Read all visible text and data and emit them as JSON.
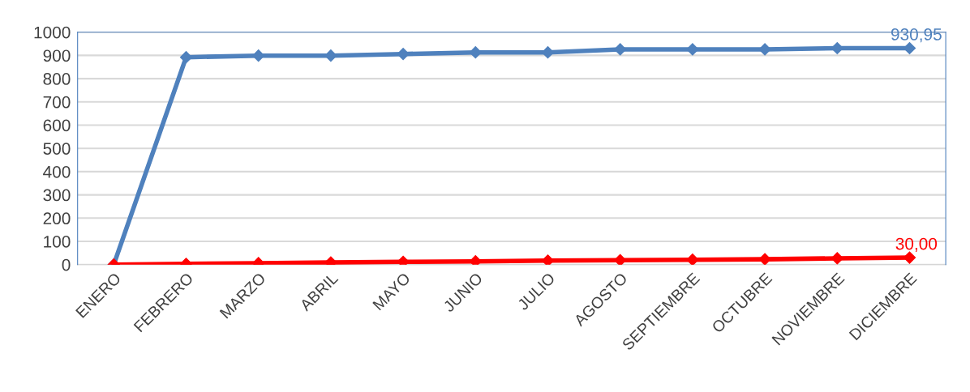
{
  "chart_data": {
    "type": "line",
    "categories": [
      "ENERO",
      "FEBRERO",
      "MARZO",
      "ABRIL",
      "MAYO",
      "JUNIO",
      "JULIO",
      "AGOSTO",
      "SEPTIEMBRE",
      "OCTUBRE",
      "NOVIEMBRE",
      "DICIEMBRE"
    ],
    "series": [
      {
        "color": "#4f81bd",
        "values": [
          0,
          892,
          899,
          899,
          906,
          913,
          913,
          926,
          926,
          926,
          931,
          930.95
        ],
        "value_labels": [
          null,
          null,
          null,
          null,
          null,
          null,
          null,
          null,
          null,
          null,
          null,
          "930,95"
        ]
      },
      {
        "color": "#ff0000",
        "values": [
          0,
          3,
          6,
          9,
          12,
          14,
          17,
          19,
          21,
          23,
          27,
          30
        ],
        "value_labels": [
          null,
          null,
          null,
          null,
          null,
          null,
          null,
          null,
          null,
          null,
          null,
          "30,00"
        ]
      }
    ],
    "ylim": [
      0,
      1000
    ],
    "yticks": [
      0,
      100,
      200,
      300,
      400,
      500,
      600,
      700,
      800,
      900,
      1000
    ],
    "grid": "y",
    "legend": false,
    "marker": "diamond",
    "line_style": "solid"
  }
}
